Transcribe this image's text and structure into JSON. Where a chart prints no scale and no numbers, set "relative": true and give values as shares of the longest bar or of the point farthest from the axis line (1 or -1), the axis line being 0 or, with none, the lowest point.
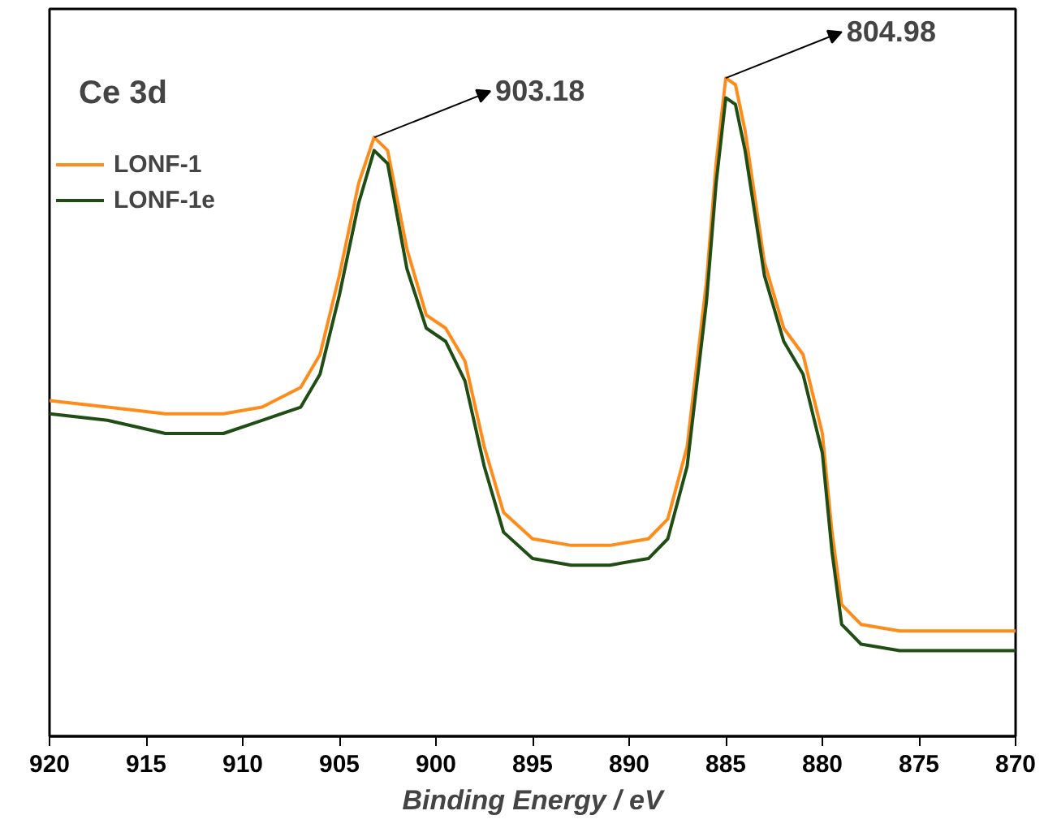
{
  "chart_data": {
    "type": "line",
    "title": "Ce 3d",
    "xlabel": "Binding Energy / eV",
    "relative": true,
    "xlim": [
      920,
      870
    ],
    "xticks": [
      920,
      915,
      910,
      905,
      900,
      895,
      890,
      885,
      880,
      875,
      870
    ],
    "tick_labels": "x",
    "legend": "top left",
    "grid": false,
    "line_style": "solid",
    "x": [
      920,
      917,
      914,
      911,
      909,
      907,
      906,
      905,
      904,
      903.2,
      902.5,
      901.5,
      900.5,
      899.5,
      898.5,
      897.5,
      896.5,
      895,
      893,
      891,
      889,
      888,
      887,
      886,
      885.5,
      885,
      884.5,
      884,
      883,
      882,
      881,
      880,
      879.5,
      879,
      878,
      876,
      873,
      870
    ],
    "series": [
      {
        "name": "LONF-1",
        "color": "#ff8c1a",
        "values": [
          0.51,
          0.5,
          0.49,
          0.49,
          0.5,
          0.53,
          0.58,
          0.7,
          0.84,
          0.91,
          0.89,
          0.74,
          0.64,
          0.62,
          0.57,
          0.44,
          0.34,
          0.3,
          0.29,
          0.29,
          0.3,
          0.33,
          0.44,
          0.69,
          0.87,
          1.0,
          0.99,
          0.92,
          0.72,
          0.62,
          0.58,
          0.46,
          0.31,
          0.2,
          0.17,
          0.16,
          0.16,
          0.16
        ]
      },
      {
        "name": "LONF-1e",
        "color": "#1f4d14",
        "values": [
          0.49,
          0.48,
          0.46,
          0.46,
          0.48,
          0.5,
          0.55,
          0.67,
          0.81,
          0.89,
          0.87,
          0.71,
          0.62,
          0.6,
          0.54,
          0.41,
          0.31,
          0.27,
          0.26,
          0.26,
          0.27,
          0.3,
          0.41,
          0.66,
          0.84,
          0.97,
          0.96,
          0.89,
          0.7,
          0.6,
          0.55,
          0.43,
          0.28,
          0.17,
          0.14,
          0.13,
          0.13,
          0.13
        ]
      }
    ],
    "annotations": [
      {
        "text": "903.18",
        "x": 903.18,
        "y": 0.91
      },
      {
        "text": "804.98",
        "x": 885,
        "y": 1.0
      }
    ]
  }
}
